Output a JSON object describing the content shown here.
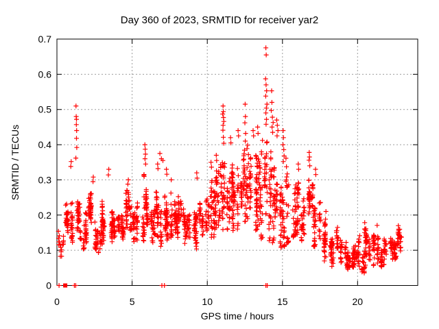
{
  "chart_data": {
    "type": "scatter",
    "title": "Day 360 of 2023, SRMTID for receiver yar2",
    "xlabel": "GPS time / hours",
    "ylabel": "SRMTID / TECUs",
    "xlim": [
      0,
      24
    ],
    "ylim": [
      0,
      0.7
    ],
    "xticks": [
      0,
      5,
      10,
      15,
      20
    ],
    "xticklabels": [
      "0",
      "5",
      "10",
      "15",
      "20"
    ],
    "yticks": [
      0,
      0.1,
      0.2,
      0.3,
      0.4,
      0.5,
      0.6,
      0.7
    ],
    "yticklabels": [
      "0",
      "0.1",
      "0.2",
      "0.3",
      "0.4",
      "0.5",
      "0.6",
      "0.7"
    ],
    "grid": true,
    "legend": "none",
    "marker": "plus",
    "marker_color": "#ff0000",
    "axis_color": "#000000",
    "grid_color": "#9c9c9c",
    "background_color": "#ffffff",
    "series": [
      {
        "name": "SRMTID",
        "bands_comment": "dense scatter summarized as [hour_center, y_min, y_max, n_points] per 0.5 h bin",
        "bands": [
          [
            0.25,
            0.06,
            0.19,
            18
          ],
          [
            0.75,
            0.12,
            0.28,
            40
          ],
          [
            1.25,
            0.12,
            0.32,
            46
          ],
          [
            1.75,
            0.1,
            0.22,
            40
          ],
          [
            2.25,
            0.1,
            0.28,
            42
          ],
          [
            2.75,
            0.08,
            0.22,
            40
          ],
          [
            3.25,
            0.1,
            0.28,
            40
          ],
          [
            3.75,
            0.11,
            0.24,
            40
          ],
          [
            4.25,
            0.1,
            0.22,
            40
          ],
          [
            4.75,
            0.12,
            0.28,
            42
          ],
          [
            5.25,
            0.1,
            0.24,
            40
          ],
          [
            5.75,
            0.12,
            0.33,
            42
          ],
          [
            6.25,
            0.1,
            0.24,
            40
          ],
          [
            6.75,
            0.11,
            0.3,
            42
          ],
          [
            7.25,
            0.1,
            0.3,
            42
          ],
          [
            7.75,
            0.13,
            0.28,
            42
          ],
          [
            8.25,
            0.12,
            0.27,
            40
          ],
          [
            8.75,
            0.1,
            0.24,
            40
          ],
          [
            9.25,
            0.1,
            0.28,
            40
          ],
          [
            9.75,
            0.12,
            0.27,
            40
          ],
          [
            10.25,
            0.13,
            0.32,
            44
          ],
          [
            10.75,
            0.15,
            0.36,
            44
          ],
          [
            11.25,
            0.15,
            0.4,
            46
          ],
          [
            11.75,
            0.15,
            0.38,
            46
          ],
          [
            12.25,
            0.14,
            0.4,
            46
          ],
          [
            12.75,
            0.15,
            0.42,
            46
          ],
          [
            13.25,
            0.13,
            0.42,
            46
          ],
          [
            13.75,
            0.13,
            0.44,
            46
          ],
          [
            14.25,
            0.1,
            0.42,
            44
          ],
          [
            14.75,
            0.1,
            0.4,
            44
          ],
          [
            15.25,
            0.08,
            0.38,
            42
          ],
          [
            15.75,
            0.1,
            0.33,
            40
          ],
          [
            16.25,
            0.12,
            0.32,
            40
          ],
          [
            16.75,
            0.13,
            0.32,
            40
          ],
          [
            17.25,
            0.1,
            0.3,
            40
          ],
          [
            17.75,
            0.06,
            0.22,
            36
          ],
          [
            18.25,
            0.05,
            0.16,
            34
          ],
          [
            18.75,
            0.05,
            0.18,
            34
          ],
          [
            19.25,
            0.04,
            0.14,
            34
          ],
          [
            19.75,
            0.03,
            0.12,
            34
          ],
          [
            20.25,
            0.03,
            0.15,
            34
          ],
          [
            20.75,
            0.06,
            0.19,
            38
          ],
          [
            21.25,
            0.05,
            0.19,
            38
          ],
          [
            21.75,
            0.04,
            0.14,
            34
          ],
          [
            22.25,
            0.05,
            0.15,
            34
          ],
          [
            22.75,
            0.06,
            0.19,
            40
          ]
        ],
        "peak_points": [
          [
            0.92,
            0.338
          ],
          [
            0.95,
            0.352
          ],
          [
            1.26,
            0.362
          ],
          [
            1.27,
            0.51
          ],
          [
            1.28,
            0.48
          ],
          [
            1.29,
            0.457
          ],
          [
            1.3,
            0.472
          ],
          [
            1.3,
            0.418
          ],
          [
            1.31,
            0.44
          ],
          [
            1.32,
            0.392
          ],
          [
            2.4,
            0.295
          ],
          [
            2.42,
            0.308
          ],
          [
            3.42,
            0.314
          ],
          [
            3.45,
            0.33
          ],
          [
            4.72,
            0.288
          ],
          [
            4.75,
            0.3
          ],
          [
            5.85,
            0.4
          ],
          [
            5.87,
            0.387
          ],
          [
            5.89,
            0.373
          ],
          [
            5.86,
            0.36
          ],
          [
            5.9,
            0.345
          ],
          [
            6.7,
            0.345
          ],
          [
            6.72,
            0.332
          ],
          [
            6.85,
            0.375
          ],
          [
            6.95,
            0.36
          ],
          [
            7.05,
            0.355
          ],
          [
            7.28,
            0.33
          ],
          [
            7.31,
            0.316
          ],
          [
            7.6,
            0.3
          ],
          [
            9.3,
            0.32
          ],
          [
            9.32,
            0.305
          ],
          [
            10.25,
            0.35
          ],
          [
            10.28,
            0.336
          ],
          [
            10.6,
            0.37
          ],
          [
            10.62,
            0.355
          ],
          [
            11.05,
            0.51
          ],
          [
            11.07,
            0.494
          ],
          [
            11.03,
            0.487
          ],
          [
            11.08,
            0.477
          ],
          [
            11.1,
            0.466
          ],
          [
            11.05,
            0.455
          ],
          [
            11.04,
            0.441
          ],
          [
            11.07,
            0.421
          ],
          [
            11.1,
            0.404
          ],
          [
            11.55,
            0.42
          ],
          [
            11.57,
            0.405
          ],
          [
            12.05,
            0.44
          ],
          [
            12.08,
            0.425
          ],
          [
            12.52,
            0.515
          ],
          [
            12.54,
            0.48
          ],
          [
            12.5,
            0.462
          ],
          [
            12.55,
            0.432
          ],
          [
            12.53,
            0.41
          ],
          [
            13.05,
            0.44
          ],
          [
            13.08,
            0.425
          ],
          [
            13.35,
            0.45
          ],
          [
            13.38,
            0.432
          ],
          [
            13.9,
            0.675
          ],
          [
            13.92,
            0.655
          ],
          [
            13.88,
            0.587
          ],
          [
            13.91,
            0.57
          ],
          [
            13.95,
            0.553
          ],
          [
            13.89,
            0.538
          ],
          [
            13.97,
            0.515
          ],
          [
            13.93,
            0.504
          ],
          [
            13.9,
            0.49
          ],
          [
            13.94,
            0.472
          ],
          [
            13.91,
            0.458
          ],
          [
            14.28,
            0.553
          ],
          [
            14.3,
            0.52
          ],
          [
            14.26,
            0.497
          ],
          [
            14.33,
            0.478
          ],
          [
            14.38,
            0.463
          ],
          [
            14.31,
            0.45
          ],
          [
            14.35,
            0.435
          ],
          [
            14.62,
            0.47
          ],
          [
            14.66,
            0.455
          ],
          [
            14.7,
            0.44
          ],
          [
            14.64,
            0.425
          ],
          [
            15.05,
            0.44
          ],
          [
            15.07,
            0.42
          ],
          [
            15.04,
            0.4
          ],
          [
            15.09,
            0.386
          ],
          [
            15.11,
            0.368
          ],
          [
            15.06,
            0.352
          ],
          [
            16.05,
            0.345
          ],
          [
            16.08,
            0.33
          ],
          [
            16.78,
            0.378
          ],
          [
            16.8,
            0.365
          ],
          [
            16.77,
            0.356
          ],
          [
            16.82,
            0.34
          ],
          [
            17.2,
            0.33
          ],
          [
            17.22,
            0.315
          ]
        ],
        "zero_points": [
          [
            0.14,
            0
          ],
          [
            1.16,
            0
          ],
          [
            1.25,
            0
          ],
          [
            6.98,
            0
          ],
          [
            7.15,
            0
          ],
          [
            13.9,
            0
          ],
          [
            13.99,
            0
          ]
        ],
        "square_points": [
          [
            0.55,
            0
          ]
        ]
      }
    ]
  }
}
